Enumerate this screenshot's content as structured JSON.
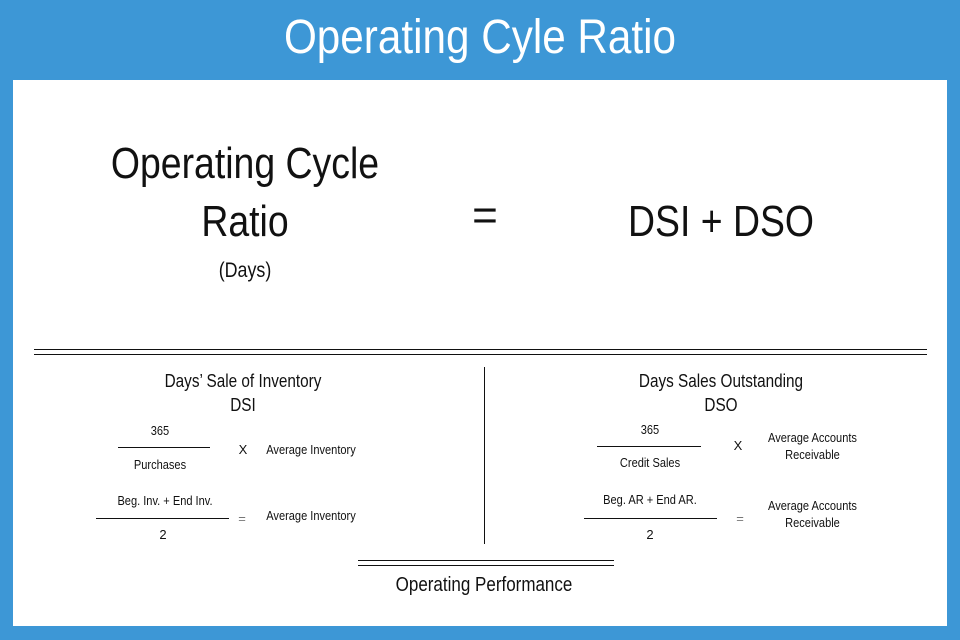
{
  "banner": {
    "title": "Operating Cyle Ratio"
  },
  "formula": {
    "lhs_line1": "Operating Cycle",
    "lhs_line2": "Ratio",
    "lhs_unit": "(Days)",
    "equals": "=",
    "rhs": "DSI + DSO"
  },
  "dsi": {
    "heading": "Days’ Sale of Inventory",
    "abbr": "DSI",
    "f1_numerator": "365",
    "f1_denominator": "Purchases",
    "f1_operator": "X",
    "f1_multiplier": "Average Inventory",
    "f2_numerator": "Beg. Inv. + End Inv.",
    "f2_denominator": "2",
    "f2_operator": "=",
    "f2_result": "Average Inventory"
  },
  "dso": {
    "heading": "Days Sales Outstanding",
    "abbr": "DSO",
    "f1_numerator": "365",
    "f1_denominator": "Credit Sales",
    "f1_operator": "X",
    "f1_multiplier_line1": "Average Accounts",
    "f1_multiplier_line2": "Receivable",
    "f2_numerator": "Beg. AR + End AR.",
    "f2_denominator": "2",
    "f2_operator": "=",
    "f2_result_line1": "Average Accounts",
    "f2_result_line2": "Receivable"
  },
  "footer": {
    "label": "Operating Performance"
  },
  "colors": {
    "banner": "#3d97d6",
    "panel": "#ffffff",
    "ink": "#111111"
  }
}
